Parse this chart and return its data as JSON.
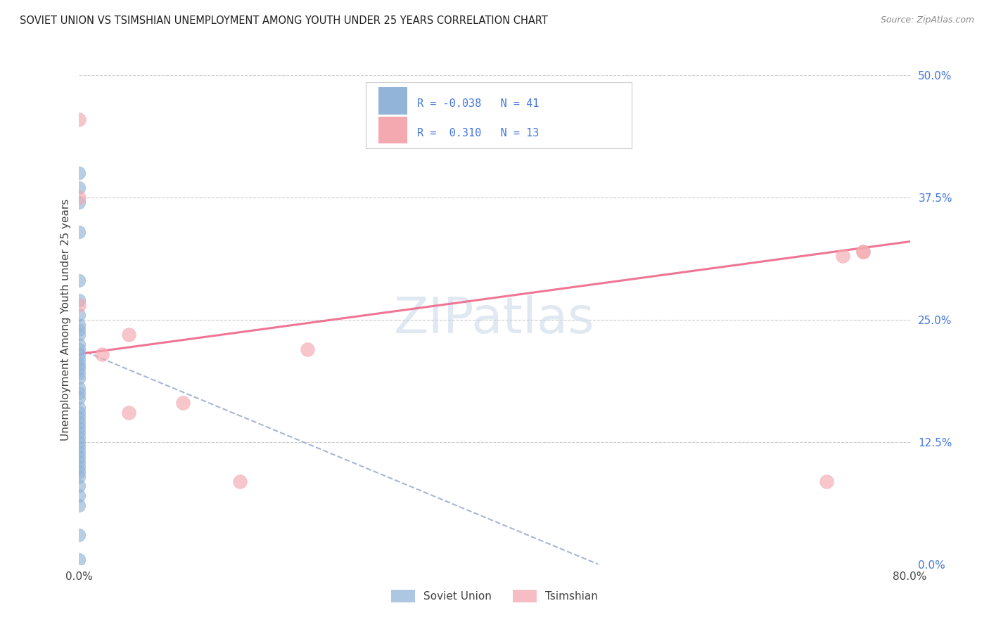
{
  "title": "SOVIET UNION VS TSIMSHIAN UNEMPLOYMENT AMONG YOUTH UNDER 25 YEARS CORRELATION CHART",
  "source": "Source: ZipAtlas.com",
  "ylabel": "Unemployment Among Youth under 25 years",
  "xlim": [
    0.0,
    0.8
  ],
  "ylim": [
    0.0,
    0.5
  ],
  "xtick_pos": [
    0.0,
    0.1,
    0.2,
    0.3,
    0.4,
    0.5,
    0.6,
    0.7,
    0.8
  ],
  "xtick_labels": [
    "0.0%",
    "",
    "",
    "",
    "",
    "",
    "",
    "",
    "80.0%"
  ],
  "ytick_positions_right": [
    0.0,
    0.125,
    0.25,
    0.375,
    0.5
  ],
  "ytick_labels_right": [
    "0.0%",
    "12.5%",
    "25.0%",
    "37.5%",
    "50.0%"
  ],
  "watermark": "ZIPatlas",
  "soviet_color": "#92B4D8",
  "tsimshian_color": "#F4A8B0",
  "trendline_soviet_color": "#99AACE",
  "trendline_tsimshian_color": "#EE6688",
  "text_blue": "#4477DD",
  "background_color": "#FFFFFF",
  "grid_color": "#CCCCCC",
  "soviet_x": [
    0.0,
    0.0,
    0.0,
    0.0,
    0.0,
    0.0,
    0.0,
    0.0,
    0.0,
    0.0,
    0.0,
    0.0,
    0.0,
    0.0,
    0.0,
    0.0,
    0.0,
    0.0,
    0.0,
    0.0,
    0.0,
    0.0,
    0.0,
    0.0,
    0.0,
    0.0,
    0.0,
    0.0,
    0.0,
    0.0,
    0.0,
    0.0,
    0.0,
    0.0,
    0.0,
    0.0,
    0.0,
    0.0,
    0.0,
    0.0,
    0.0
  ],
  "soviet_y": [
    0.4,
    0.385,
    0.37,
    0.34,
    0.29,
    0.27,
    0.255,
    0.245,
    0.24,
    0.235,
    0.225,
    0.22,
    0.215,
    0.21,
    0.205,
    0.2,
    0.195,
    0.19,
    0.18,
    0.175,
    0.17,
    0.16,
    0.155,
    0.15,
    0.145,
    0.14,
    0.135,
    0.13,
    0.125,
    0.12,
    0.115,
    0.11,
    0.105,
    0.1,
    0.095,
    0.09,
    0.08,
    0.07,
    0.06,
    0.03,
    0.005
  ],
  "tsimshian_x": [
    0.0,
    0.0,
    0.0,
    0.022,
    0.048,
    0.048,
    0.1,
    0.155,
    0.22,
    0.72,
    0.735,
    0.755,
    0.755
  ],
  "tsimshian_y": [
    0.455,
    0.375,
    0.265,
    0.215,
    0.155,
    0.235,
    0.165,
    0.085,
    0.22,
    0.085,
    0.315,
    0.32,
    0.32
  ],
  "soviet_trend_x": [
    0.0,
    0.5
  ],
  "soviet_trend_y": [
    0.22,
    0.0
  ],
  "tsimshian_trend_x": [
    0.0,
    0.8
  ],
  "tsimshian_trend_y": [
    0.215,
    0.33
  ]
}
